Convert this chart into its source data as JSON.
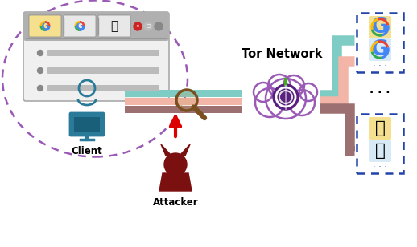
{
  "figsize": [
    5.18,
    3.08
  ],
  "dpi": 100,
  "bg_color": "#ffffff",
  "tor_label": "Tor Network",
  "client_label": "Client",
  "attacker_label": "Attacker",
  "ellipse_color": "#9b59b6",
  "teal_color": "#7eccc4",
  "salmon_color": "#f2b5a8",
  "brown_color": "#9c7070",
  "dashed_box_color": "#2244aa",
  "dark_red": "#7a1010",
  "cloud_purple": "#9b59b6",
  "client_teal": "#2a7a9a",
  "magnifier_brown": "#7a5020"
}
